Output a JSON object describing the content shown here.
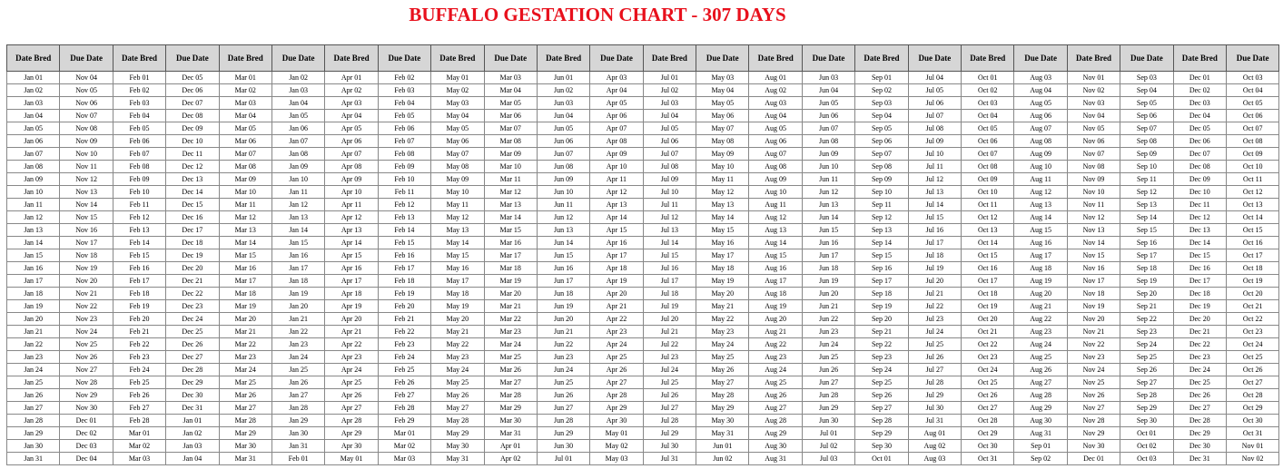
{
  "title": "BUFFALO GESTATION CHART - 307 DAYS",
  "headers": [
    "Date Bred",
    "Due Date",
    "Date Bred",
    "Due Date",
    "Date Bred",
    "Due Date",
    "Date Bred",
    "Due Date",
    "Date Bred",
    "Due Date",
    "Date Bred",
    "Due Date",
    "Date Bred",
    "Due Date",
    "Date Bred",
    "Due Date",
    "Date Bred",
    "Due Date",
    "Date Bred",
    "Due Date",
    "Date Bred",
    "Due Date",
    "Date Bred",
    "Due Date"
  ],
  "rows": [
    [
      "Jan 01",
      "Nov 04",
      "Feb 01",
      "Dec 05",
      "Mar 01",
      "Jan 02",
      "Apr 01",
      "Feb 02",
      "May 01",
      "Mar 03",
      "Jun 01",
      "Apr 03",
      "Jul 01",
      "May 03",
      "Aug 01",
      "Jun 03",
      "Sep 01",
      "Jul 04",
      "Oct 01",
      "Aug 03",
      "Nov 01",
      "Sep 03",
      "Dec 01",
      "Oct 03"
    ],
    [
      "Jan 02",
      "Nov 05",
      "Feb 02",
      "Dec 06",
      "Mar 02",
      "Jan 03",
      "Apr 02",
      "Feb 03",
      "May 02",
      "Mar 04",
      "Jun 02",
      "Apr 04",
      "Jul 02",
      "May 04",
      "Aug 02",
      "Jun 04",
      "Sep 02",
      "Jul 05",
      "Oct 02",
      "Aug 04",
      "Nov 02",
      "Sep 04",
      "Dec 02",
      "Oct 04"
    ],
    [
      "Jan 03",
      "Nov 06",
      "Feb 03",
      "Dec 07",
      "Mar 03",
      "Jan 04",
      "Apr 03",
      "Feb 04",
      "May 03",
      "Mar 05",
      "Jun 03",
      "Apr 05",
      "Jul 03",
      "May 05",
      "Aug 03",
      "Jun 05",
      "Sep 03",
      "Jul 06",
      "Oct 03",
      "Aug 05",
      "Nov 03",
      "Sep 05",
      "Dec 03",
      "Oct 05"
    ],
    [
      "Jan 04",
      "Nov 07",
      "Feb 04",
      "Dec 08",
      "Mar 04",
      "Jan 05",
      "Apr 04",
      "Feb 05",
      "May 04",
      "Mar 06",
      "Jun 04",
      "Apr 06",
      "Jul 04",
      "May 06",
      "Aug 04",
      "Jun 06",
      "Sep 04",
      "Jul 07",
      "Oct 04",
      "Aug 06",
      "Nov 04",
      "Sep 06",
      "Dec 04",
      "Oct 06"
    ],
    [
      "Jan 05",
      "Nov 08",
      "Feb 05",
      "Dec 09",
      "Mar 05",
      "Jan 06",
      "Apr 05",
      "Feb 06",
      "May 05",
      "Mar 07",
      "Jun 05",
      "Apr 07",
      "Jul 05",
      "May 07",
      "Aug 05",
      "Jun 07",
      "Sep 05",
      "Jul 08",
      "Oct 05",
      "Aug 07",
      "Nov 05",
      "Sep 07",
      "Dec 05",
      "Oct 07"
    ],
    [
      "Jan 06",
      "Nov 09",
      "Feb 06",
      "Dec 10",
      "Mar 06",
      "Jan 07",
      "Apr 06",
      "Feb 07",
      "May 06",
      "Mar 08",
      "Jun 06",
      "Apr 08",
      "Jul 06",
      "May 08",
      "Aug 06",
      "Jun 08",
      "Sep 06",
      "Jul 09",
      "Oct 06",
      "Aug 08",
      "Nov 06",
      "Sep 08",
      "Dec 06",
      "Oct 08"
    ],
    [
      "Jan 07",
      "Nov 10",
      "Feb 07",
      "Dec 11",
      "Mar 07",
      "Jan 08",
      "Apr 07",
      "Feb 08",
      "May 07",
      "Mar 09",
      "Jun 07",
      "Apr 09",
      "Jul 07",
      "May 09",
      "Aug 07",
      "Jun 09",
      "Sep 07",
      "Jul 10",
      "Oct 07",
      "Aug 09",
      "Nov 07",
      "Sep 09",
      "Dec 07",
      "Oct 09"
    ],
    [
      "Jan 08",
      "Nov 11",
      "Feb 08",
      "Dec 12",
      "Mar 08",
      "Jan 09",
      "Apr 08",
      "Feb 09",
      "May 08",
      "Mar 10",
      "Jun 08",
      "Apr 10",
      "Jul 08",
      "May 10",
      "Aug 08",
      "Jun 10",
      "Sep 08",
      "Jul 11",
      "Oct 08",
      "Aug 10",
      "Nov 08",
      "Sep 10",
      "Dec 08",
      "Oct 10"
    ],
    [
      "Jan 09",
      "Nov 12",
      "Feb 09",
      "Dec 13",
      "Mar 09",
      "Jan 10",
      "Apr 09",
      "Feb 10",
      "May 09",
      "Mar 11",
      "Jun 09",
      "Apr 11",
      "Jul 09",
      "May 11",
      "Aug 09",
      "Jun 11",
      "Sep 09",
      "Jul 12",
      "Oct 09",
      "Aug 11",
      "Nov 09",
      "Sep 11",
      "Dec 09",
      "Oct 11"
    ],
    [
      "Jan 10",
      "Nov 13",
      "Feb 10",
      "Dec 14",
      "Mar 10",
      "Jan 11",
      "Apr 10",
      "Feb 11",
      "May 10",
      "Mar 12",
      "Jun 10",
      "Apr 12",
      "Jul 10",
      "May 12",
      "Aug 10",
      "Jun 12",
      "Sep 10",
      "Jul 13",
      "Oct 10",
      "Aug 12",
      "Nov 10",
      "Sep 12",
      "Dec 10",
      "Oct 12"
    ],
    [
      "Jan 11",
      "Nov 14",
      "Feb 11",
      "Dec 15",
      "Mar 11",
      "Jan 12",
      "Apr 11",
      "Feb 12",
      "May 11",
      "Mar 13",
      "Jun 11",
      "Apr 13",
      "Jul 11",
      "May 13",
      "Aug 11",
      "Jun 13",
      "Sep 11",
      "Jul 14",
      "Oct 11",
      "Aug 13",
      "Nov 11",
      "Sep 13",
      "Dec 11",
      "Oct 13"
    ],
    [
      "Jan 12",
      "Nov 15",
      "Feb 12",
      "Dec 16",
      "Mar 12",
      "Jan 13",
      "Apr 12",
      "Feb 13",
      "May 12",
      "Mar 14",
      "Jun 12",
      "Apr 14",
      "Jul 12",
      "May 14",
      "Aug 12",
      "Jun 14",
      "Sep 12",
      "Jul 15",
      "Oct 12",
      "Aug 14",
      "Nov 12",
      "Sep 14",
      "Dec 12",
      "Oct 14"
    ],
    [
      "Jan 13",
      "Nov 16",
      "Feb 13",
      "Dec 17",
      "Mar 13",
      "Jan 14",
      "Apr 13",
      "Feb 14",
      "May 13",
      "Mar 15",
      "Jun 13",
      "Apr 15",
      "Jul 13",
      "May 15",
      "Aug 13",
      "Jun 15",
      "Sep 13",
      "Jul 16",
      "Oct 13",
      "Aug 15",
      "Nov 13",
      "Sep 15",
      "Dec 13",
      "Oct 15"
    ],
    [
      "Jan 14",
      "Nov 17",
      "Feb 14",
      "Dec 18",
      "Mar 14",
      "Jan 15",
      "Apr 14",
      "Feb 15",
      "May 14",
      "Mar 16",
      "Jun 14",
      "Apr 16",
      "Jul 14",
      "May 16",
      "Aug 14",
      "Jun 16",
      "Sep 14",
      "Jul 17",
      "Oct 14",
      "Aug 16",
      "Nov 14",
      "Sep 16",
      "Dec 14",
      "Oct 16"
    ],
    [
      "Jan 15",
      "Nov 18",
      "Feb 15",
      "Dec 19",
      "Mar 15",
      "Jan 16",
      "Apr 15",
      "Feb 16",
      "May 15",
      "Mar 17",
      "Jun 15",
      "Apr 17",
      "Jul 15",
      "May 17",
      "Aug 15",
      "Jun 17",
      "Sep 15",
      "Jul 18",
      "Oct 15",
      "Aug 17",
      "Nov 15",
      "Sep 17",
      "Dec 15",
      "Oct 17"
    ],
    [
      "Jan 16",
      "Nov 19",
      "Feb 16",
      "Dec 20",
      "Mar 16",
      "Jan 17",
      "Apr 16",
      "Feb 17",
      "May 16",
      "Mar 18",
      "Jun 16",
      "Apr 18",
      "Jul 16",
      "May 18",
      "Aug 16",
      "Jun 18",
      "Sep 16",
      "Jul 19",
      "Oct 16",
      "Aug 18",
      "Nov 16",
      "Sep 18",
      "Dec 16",
      "Oct 18"
    ],
    [
      "Jan 17",
      "Nov 20",
      "Feb 17",
      "Dec 21",
      "Mar 17",
      "Jan 18",
      "Apr 17",
      "Feb 18",
      "May 17",
      "Mar 19",
      "Jun 17",
      "Apr 19",
      "Jul 17",
      "May 19",
      "Aug 17",
      "Jun 19",
      "Sep 17",
      "Jul 20",
      "Oct 17",
      "Aug 19",
      "Nov 17",
      "Sep 19",
      "Dec 17",
      "Oct 19"
    ],
    [
      "Jan 18",
      "Nov 21",
      "Feb 18",
      "Dec 22",
      "Mar 18",
      "Jan 19",
      "Apr 18",
      "Feb 19",
      "May 18",
      "Mar 20",
      "Jun 18",
      "Apr 20",
      "Jul 18",
      "May 20",
      "Aug 18",
      "Jun 20",
      "Sep 18",
      "Jul 21",
      "Oct 18",
      "Aug 20",
      "Nov 18",
      "Sep 20",
      "Dec 18",
      "Oct 20"
    ],
    [
      "Jan 19",
      "Nov 22",
      "Feb 19",
      "Dec 23",
      "Mar 19",
      "Jan 20",
      "Apr 19",
      "Feb 20",
      "May 19",
      "Mar 21",
      "Jun 19",
      "Apr 21",
      "Jul 19",
      "May 21",
      "Aug 19",
      "Jun 21",
      "Sep 19",
      "Jul 22",
      "Oct 19",
      "Aug 21",
      "Nov 19",
      "Sep 21",
      "Dec 19",
      "Oct 21"
    ],
    [
      "Jan 20",
      "Nov 23",
      "Feb 20",
      "Dec 24",
      "Mar 20",
      "Jan 21",
      "Apr 20",
      "Feb 21",
      "May 20",
      "Mar 22",
      "Jun 20",
      "Apr 22",
      "Jul 20",
      "May 22",
      "Aug 20",
      "Jun 22",
      "Sep 20",
      "Jul 23",
      "Oct 20",
      "Aug 22",
      "Nov 20",
      "Sep 22",
      "Dec 20",
      "Oct 22"
    ],
    [
      "Jan 21",
      "Nov 24",
      "Feb 21",
      "Dec 25",
      "Mar 21",
      "Jan 22",
      "Apr 21",
      "Feb 22",
      "May 21",
      "Mar 23",
      "Jun 21",
      "Apr 23",
      "Jul 21",
      "May 23",
      "Aug 21",
      "Jun 23",
      "Sep 21",
      "Jul 24",
      "Oct 21",
      "Aug 23",
      "Nov 21",
      "Sep 23",
      "Dec 21",
      "Oct 23"
    ],
    [
      "Jan 22",
      "Nov 25",
      "Feb 22",
      "Dec 26",
      "Mar 22",
      "Jan 23",
      "Apr 22",
      "Feb 23",
      "May 22",
      "Mar 24",
      "Jun 22",
      "Apr 24",
      "Jul 22",
      "May 24",
      "Aug 22",
      "Jun 24",
      "Sep 22",
      "Jul 25",
      "Oct 22",
      "Aug 24",
      "Nov 22",
      "Sep 24",
      "Dec 22",
      "Oct 24"
    ],
    [
      "Jan 23",
      "Nov 26",
      "Feb 23",
      "Dec 27",
      "Mar 23",
      "Jan 24",
      "Apr 23",
      "Feb 24",
      "May 23",
      "Mar 25",
      "Jun 23",
      "Apr 25",
      "Jul 23",
      "May 25",
      "Aug 23",
      "Jun 25",
      "Sep 23",
      "Jul 26",
      "Oct 23",
      "Aug 25",
      "Nov 23",
      "Sep 25",
      "Dec 23",
      "Oct 25"
    ],
    [
      "Jan 24",
      "Nov 27",
      "Feb 24",
      "Dec 28",
      "Mar 24",
      "Jan 25",
      "Apr 24",
      "Feb 25",
      "May 24",
      "Mar 26",
      "Jun 24",
      "Apr 26",
      "Jul 24",
      "May 26",
      "Aug 24",
      "Jun 26",
      "Sep 24",
      "Jul 27",
      "Oct 24",
      "Aug 26",
      "Nov 24",
      "Sep 26",
      "Dec 24",
      "Oct 26"
    ],
    [
      "Jan 25",
      "Nov 28",
      "Feb 25",
      "Dec 29",
      "Mar 25",
      "Jan 26",
      "Apr 25",
      "Feb 26",
      "May 25",
      "Mar 27",
      "Jun 25",
      "Apr 27",
      "Jul 25",
      "May 27",
      "Aug 25",
      "Jun 27",
      "Sep 25",
      "Jul 28",
      "Oct 25",
      "Aug 27",
      "Nov 25",
      "Sep 27",
      "Dec 25",
      "Oct 27"
    ],
    [
      "Jan 26",
      "Nov 29",
      "Feb 26",
      "Dec 30",
      "Mar 26",
      "Jan 27",
      "Apr 26",
      "Feb 27",
      "May 26",
      "Mar 28",
      "Jun 26",
      "Apr 28",
      "Jul 26",
      "May 28",
      "Aug 26",
      "Jun 28",
      "Sep 26",
      "Jul 29",
      "Oct 26",
      "Aug 28",
      "Nov 26",
      "Sep 28",
      "Dec 26",
      "Oct 28"
    ],
    [
      "Jan 27",
      "Nov 30",
      "Feb 27",
      "Dec 31",
      "Mar 27",
      "Jan 28",
      "Apr 27",
      "Feb 28",
      "May 27",
      "Mar 29",
      "Jun 27",
      "Apr 29",
      "Jul 27",
      "May 29",
      "Aug 27",
      "Jun 29",
      "Sep 27",
      "Jul 30",
      "Oct 27",
      "Aug 29",
      "Nov 27",
      "Sep 29",
      "Dec 27",
      "Oct 29"
    ],
    [
      "Jan 28",
      "Dec 01",
      "Feb 28",
      "Jan 01",
      "Mar 28",
      "Jan 29",
      "Apr 28",
      "Feb 29",
      "May 28",
      "Mar 30",
      "Jun 28",
      "Apr 30",
      "Jul 28",
      "May 30",
      "Aug 28",
      "Jun 30",
      "Sep 28",
      "Jul 31",
      "Oct 28",
      "Aug 30",
      "Nov 28",
      "Sep 30",
      "Dec 28",
      "Oct 30"
    ],
    [
      "Jan 29",
      "Dec 02",
      "Mar 01",
      "Jan 02",
      "Mar 29",
      "Jan 30",
      "Apr 29",
      "Mar 01",
      "May 29",
      "Mar 31",
      "Jun 29",
      "May 01",
      "Jul 29",
      "May 31",
      "Aug 29",
      "Jul 01",
      "Sep 29",
      "Aug 01",
      "Oct 29",
      "Aug 31",
      "Nov 29",
      "Oct 01",
      "Dec 29",
      "Oct 31"
    ],
    [
      "Jan 30",
      "Dec 03",
      "Mar 02",
      "Jan 03",
      "Mar 30",
      "Jan 31",
      "Apr 30",
      "Mar 02",
      "May 30",
      "Apr 01",
      "Jun 30",
      "May 02",
      "Jul 30",
      "Jun 01",
      "Aug 30",
      "Jul 02",
      "Sep 30",
      "Aug 02",
      "Oct 30",
      "Sep 01",
      "Nov 30",
      "Oct 02",
      "Dec 30",
      "Nov 01"
    ],
    [
      "Jan 31",
      "Dec 04",
      "Mar 03",
      "Jan 04",
      "Mar 31",
      "Feb 01",
      "May 01",
      "Mar 03",
      "May 31",
      "Apr 02",
      "Jul 01",
      "May 03",
      "Jul 31",
      "Jun 02",
      "Aug 31",
      "Jul 03",
      "Oct 01",
      "Aug 03",
      "Oct 31",
      "Sep 02",
      "Dec 01",
      "Oct 03",
      "Dec 31",
      "Nov 02"
    ]
  ]
}
